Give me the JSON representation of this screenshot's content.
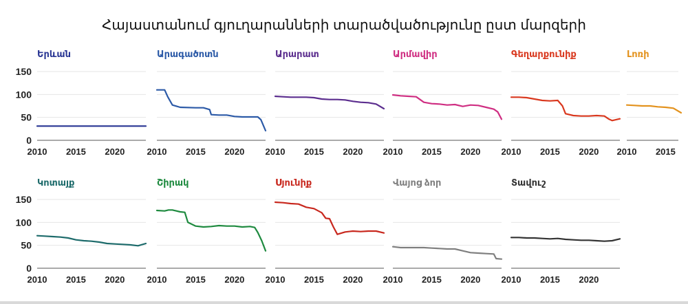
{
  "title": "Հայաստանում գյուղարանների տարածվածությունը ըստ մարզերի",
  "chart_data": {
    "type": "line",
    "title": "Հայաստանում գյուղարանների տարածվածությունը ըստ մարզերի",
    "x_ticks": [
      2010,
      2015,
      2020
    ],
    "y_ticks": [
      0,
      50,
      100,
      150
    ],
    "ylim": [
      0,
      150
    ],
    "panels": [
      {
        "name": "Երևան",
        "color": "#283593",
        "x": [
          2010,
          2024
        ],
        "y": [
          31,
          31
        ]
      },
      {
        "name": "Արագածոտն",
        "color": "#2c5aa7",
        "x": [
          2010,
          2011,
          2011.4,
          2012,
          2013,
          2015,
          2016,
          2016.8,
          2017,
          2018,
          2019,
          2020,
          2021,
          2023,
          2023.4,
          2024
        ],
        "y": [
          110,
          110,
          95,
          77,
          72,
          71,
          71,
          67,
          56,
          55,
          55,
          52,
          51,
          51,
          45,
          21
        ]
      },
      {
        "name": "Արարատ",
        "color": "#5b2d8e",
        "x": [
          2010,
          2011,
          2012,
          2014,
          2015,
          2016,
          2017,
          2018,
          2019,
          2020,
          2021,
          2022,
          2023,
          2024
        ],
        "y": [
          96,
          95,
          94,
          94,
          93,
          90,
          89,
          89,
          88,
          85,
          83,
          82,
          79,
          69
        ]
      },
      {
        "name": "Արմավիր",
        "color": "#cf2e82",
        "x": [
          2010,
          2011,
          2012,
          2013,
          2014,
          2015,
          2016,
          2017,
          2018,
          2019,
          2020,
          2021,
          2022,
          2023,
          2023.5,
          2024
        ],
        "y": [
          99,
          97,
          96,
          95,
          83,
          80,
          79,
          77,
          78,
          74,
          77,
          76,
          72,
          68,
          62,
          46
        ]
      },
      {
        "name": "Գեղարքունիք",
        "color": "#d9381e",
        "x": [
          2010,
          2011,
          2012,
          2013,
          2014,
          2015,
          2016,
          2016.6,
          2017,
          2018,
          2019,
          2020,
          2021,
          2022,
          2022.6,
          2023,
          2024
        ],
        "y": [
          94,
          94,
          93,
          90,
          87,
          86,
          87,
          75,
          58,
          54,
          53,
          53,
          54,
          53,
          46,
          43,
          47
        ]
      },
      {
        "name": "Լոռի",
        "color": "#e3921d",
        "x": [
          2010,
          2011,
          2012,
          2013,
          2014,
          2015,
          2016,
          2017
        ],
        "y": [
          77,
          76,
          75,
          75,
          73,
          72,
          70,
          60
        ]
      },
      {
        "name": "Կոտայք",
        "color": "#1d6b6b",
        "x": [
          2010,
          2011,
          2012,
          2013,
          2014,
          2015,
          2016,
          2017,
          2018,
          2019,
          2020,
          2021,
          2022,
          2023,
          2024
        ],
        "y": [
          71,
          70,
          69,
          68,
          66,
          62,
          60,
          59,
          57,
          54,
          53,
          52,
          51,
          49,
          54
        ]
      },
      {
        "name": "Շիրակ",
        "color": "#1e8a3f",
        "x": [
          2010,
          2011,
          2011.5,
          2012,
          2013,
          2013.6,
          2014,
          2015,
          2016,
          2017,
          2018,
          2019,
          2020,
          2021,
          2022,
          2022.6,
          2023,
          2023.5,
          2024
        ],
        "y": [
          126,
          125,
          127,
          127,
          123,
          122,
          100,
          92,
          90,
          91,
          93,
          92,
          92,
          90,
          91,
          89,
          78,
          60,
          38
        ]
      },
      {
        "name": "Սյունիք",
        "color": "#c8281e",
        "x": [
          2010,
          2011,
          2012,
          2013,
          2014,
          2015,
          2016,
          2016.5,
          2017,
          2017.5,
          2018,
          2019,
          2020,
          2021,
          2022,
          2023,
          2024
        ],
        "y": [
          144,
          143,
          141,
          140,
          133,
          130,
          121,
          109,
          108,
          90,
          74,
          79,
          81,
          80,
          81,
          81,
          77
        ]
      },
      {
        "name": "Վայոց ձոր",
        "color": "#7f7f7f",
        "x": [
          2010,
          2011,
          2012,
          2013,
          2014,
          2015,
          2016,
          2017,
          2018,
          2019,
          2020,
          2021,
          2022,
          2023,
          2023.3,
          2024
        ],
        "y": [
          47,
          45,
          45,
          45,
          45,
          44,
          43,
          42,
          42,
          38,
          34,
          33,
          32,
          31,
          21,
          20
        ]
      },
      {
        "name": "Տավուշ",
        "color": "#333333",
        "x": [
          2010,
          2011,
          2012,
          2013,
          2014,
          2015,
          2016,
          2017,
          2018,
          2019,
          2020,
          2021,
          2022,
          2023,
          2024
        ],
        "y": [
          67,
          67,
          66,
          66,
          65,
          64,
          65,
          63,
          62,
          61,
          61,
          60,
          59,
          60,
          64
        ]
      }
    ]
  }
}
